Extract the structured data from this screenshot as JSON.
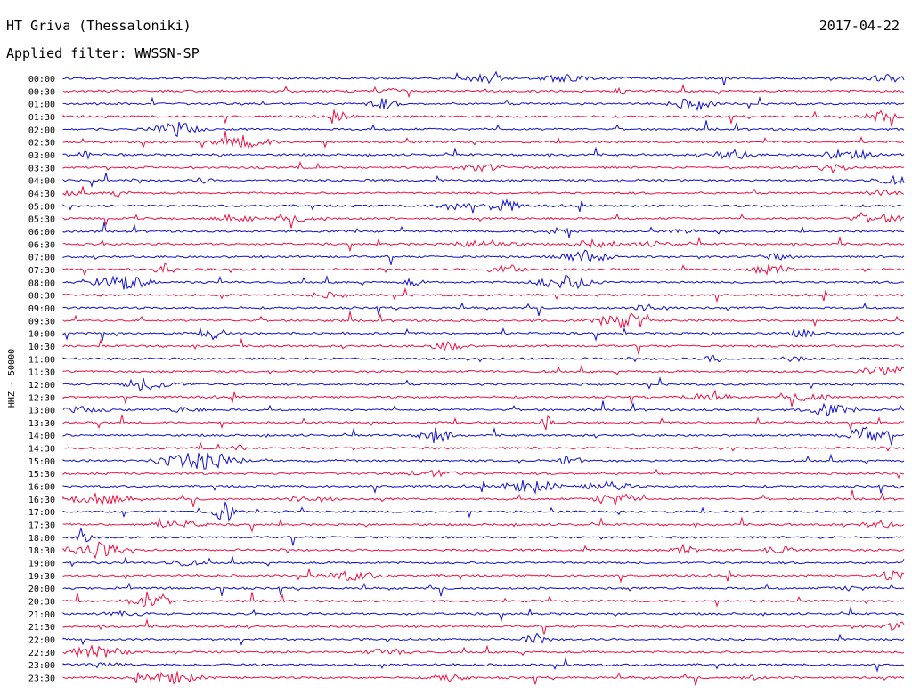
{
  "header": {
    "station": "HT Griva (Thessaloniki)",
    "date": "2017-04-22",
    "filter": "Applied filter: WWSSN-SP"
  },
  "chart_data": {
    "type": "line",
    "title": "HT Griva (Thessaloniki)",
    "subtitle": "Applied filter: WWSSN-SP",
    "date": "2017-04-22",
    "ylabel": "HHZ - 50000",
    "row_labels": [
      "00:00",
      "00:30",
      "01:00",
      "01:30",
      "02:00",
      "02:30",
      "03:00",
      "03:30",
      "04:00",
      "04:30",
      "05:00",
      "05:30",
      "06:00",
      "06:30",
      "07:00",
      "07:30",
      "08:00",
      "08:30",
      "09:00",
      "09:30",
      "10:00",
      "10:30",
      "11:00",
      "11:30",
      "12:00",
      "12:30",
      "13:00",
      "13:30",
      "14:00",
      "14:30",
      "15:00",
      "15:30",
      "16:00",
      "16:30",
      "17:00",
      "17:30",
      "18:00",
      "18:30",
      "19:00",
      "19:30",
      "20:00",
      "20:30",
      "21:00",
      "21:30",
      "22:00",
      "22:30",
      "23:00",
      "23:30"
    ],
    "colors": {
      "even": "#1010cc",
      "odd": "#ee1144"
    },
    "grid": false
  }
}
